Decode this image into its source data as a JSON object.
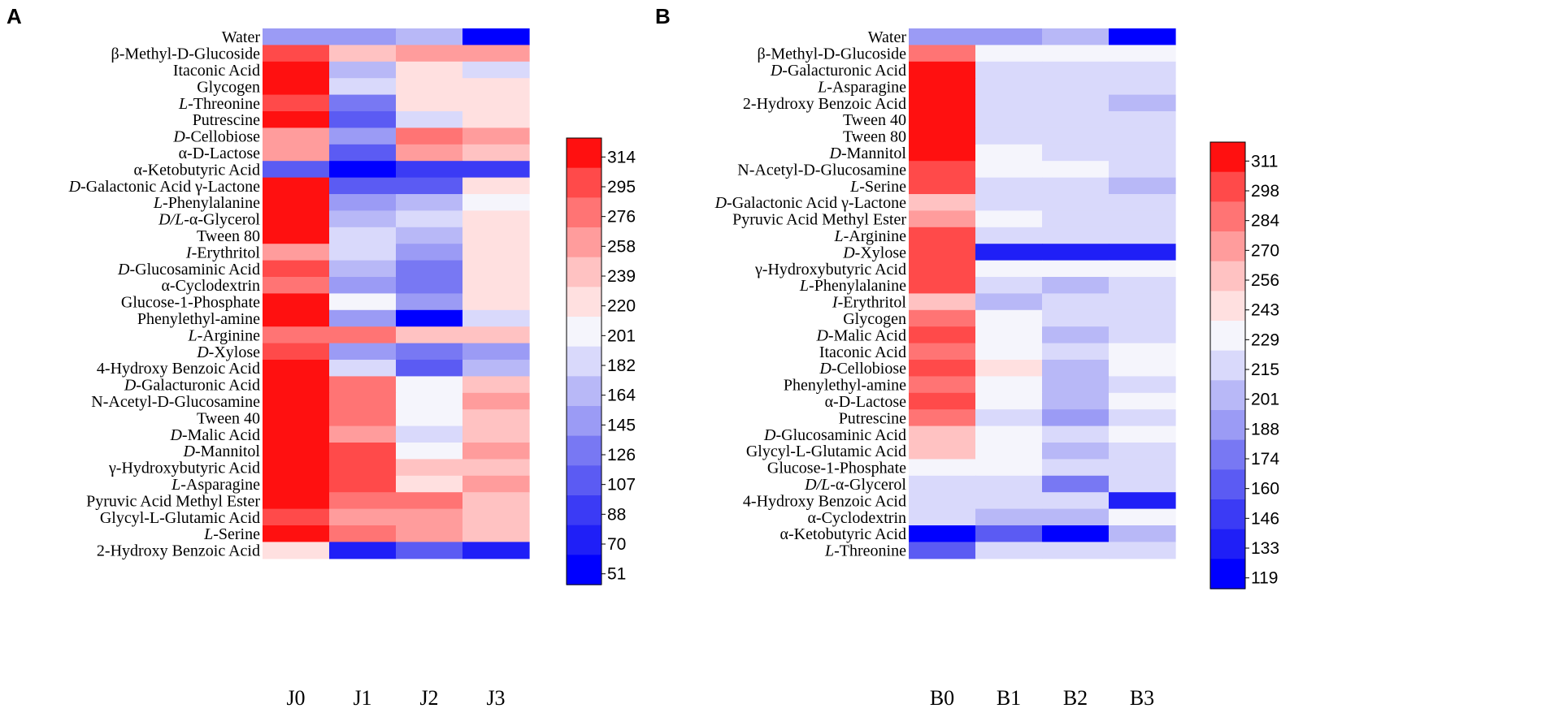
{
  "chart_data": [
    {
      "type": "heatmap",
      "panel": "A",
      "columns": [
        "J0",
        "J1",
        "J2",
        "J3"
      ],
      "rows": [
        {
          "label": "Water",
          "values": [
            140,
            140,
            160,
            51
          ]
        },
        {
          "label": "β-Methyl-D-Glucoside",
          "values": [
            295,
            235,
            250,
            250
          ]
        },
        {
          "label": "Itaconic Acid",
          "values": [
            300,
            160,
            210,
            182
          ]
        },
        {
          "label": "Glycogen",
          "values": [
            300,
            182,
            210,
            220
          ]
        },
        {
          "label": "L-Threonine",
          "values": [
            280,
            130,
            210,
            220
          ]
        },
        {
          "label": "Putrescine",
          "values": [
            300,
            110,
            182,
            220
          ]
        },
        {
          "label": "D-Cellobiose",
          "values": [
            258,
            155,
            270,
            245
          ]
        },
        {
          "label": "α-D-Lactose",
          "values": [
            258,
            105,
            258,
            235
          ]
        },
        {
          "label": "α-Ketobutyric Acid",
          "values": [
            110,
            51,
            95,
            95
          ]
        },
        {
          "label": "D-Galactonic Acid γ-Lactone",
          "values": [
            314,
            120,
            120,
            220
          ]
        },
        {
          "label": "L-Phenylalanine",
          "values": [
            300,
            150,
            160,
            201
          ]
        },
        {
          "label": "D/L-α-Glycerol",
          "values": [
            300,
            165,
            182,
            220
          ]
        },
        {
          "label": "Tween 80",
          "values": [
            314,
            182,
            164,
            220
          ]
        },
        {
          "label": "I-Erythritol",
          "values": [
            258,
            182,
            150,
            220
          ]
        },
        {
          "label": "D-Glucosaminic Acid",
          "values": [
            280,
            165,
            130,
            220
          ]
        },
        {
          "label": "α-Cyclodextrin",
          "values": [
            270,
            150,
            130,
            220
          ]
        },
        {
          "label": "Glucose-1-Phosphate",
          "values": [
            300,
            201,
            145,
            220
          ]
        },
        {
          "label": "Phenylethyl-amine",
          "values": [
            314,
            150,
            51,
            182
          ]
        },
        {
          "label": "L-Arginine",
          "values": [
            270,
            270,
            230,
            230
          ]
        },
        {
          "label": "D-Xylose",
          "values": [
            295,
            145,
            130,
            150
          ]
        },
        {
          "label": "4-Hydroxy Benzoic Acid",
          "values": [
            314,
            182,
            110,
            164
          ]
        },
        {
          "label": "D-Galacturonic Acid",
          "values": [
            314,
            270,
            201,
            235
          ]
        },
        {
          "label": "N-Acetyl-D-Glucosamine",
          "values": [
            314,
            270,
            201,
            250
          ]
        },
        {
          "label": "Tween 40",
          "values": [
            314,
            270,
            201,
            230
          ]
        },
        {
          "label": "D-Malic Acid",
          "values": [
            314,
            250,
            182,
            230
          ]
        },
        {
          "label": "D-Mannitol",
          "values": [
            314,
            285,
            201,
            245
          ]
        },
        {
          "label": "γ-Hydroxybutyric Acid",
          "values": [
            314,
            285,
            230,
            230
          ]
        },
        {
          "label": "L-Asparagine",
          "values": [
            314,
            285,
            210,
            250
          ]
        },
        {
          "label": "Pyruvic Acid Methyl Ester",
          "values": [
            314,
            270,
            270,
            230
          ]
        },
        {
          "label": "Glycyl-L-Glutamic Acid",
          "values": [
            285,
            250,
            245,
            230
          ]
        },
        {
          "label": "L-Serine",
          "values": [
            300,
            270,
            245,
            230
          ]
        },
        {
          "label": "2-Hydroxy Benzoic Acid",
          "values": [
            210,
            70,
            105,
            70
          ]
        }
      ],
      "colorbar": {
        "min": 51,
        "max": 314,
        "ticks": [
          "314",
          "295",
          "276",
          "258",
          "239",
          "220",
          "201",
          "182",
          "164",
          "145",
          "126",
          "107",
          "88",
          "70",
          "51"
        ]
      }
    },
    {
      "type": "heatmap",
      "panel": "B",
      "columns": [
        "B0",
        "B1",
        "B2",
        "B3"
      ],
      "rows": [
        {
          "label": "Water",
          "values": [
            185,
            185,
            200,
            119
          ]
        },
        {
          "label": "β-Methyl-D-Glucoside",
          "values": [
            284,
            229,
            229,
            229
          ]
        },
        {
          "label": "D-Galacturonic Acid",
          "values": [
            305,
            215,
            215,
            215
          ]
        },
        {
          "label": "L-Asparagine",
          "values": [
            311,
            215,
            215,
            215
          ]
        },
        {
          "label": "2-Hydroxy Benzoic Acid",
          "values": [
            305,
            215,
            215,
            208
          ]
        },
        {
          "label": "Tween 40",
          "values": [
            311,
            215,
            215,
            215
          ]
        },
        {
          "label": "Tween 80",
          "values": [
            311,
            215,
            215,
            215
          ]
        },
        {
          "label": "D-Mannitol",
          "values": [
            311,
            229,
            215,
            215
          ]
        },
        {
          "label": "N-Acetyl-D-Glucosamine",
          "values": [
            291,
            229,
            229,
            215
          ]
        },
        {
          "label": "L-Serine",
          "values": [
            298,
            215,
            215,
            208
          ]
        },
        {
          "label": "D-Galactonic Acid γ-Lactone",
          "values": [
            250,
            215,
            215,
            215
          ]
        },
        {
          "label": "Pyruvic Acid Methyl Ester",
          "values": [
            270,
            229,
            215,
            215
          ]
        },
        {
          "label": "L-Arginine",
          "values": [
            291,
            215,
            215,
            215
          ]
        },
        {
          "label": "D-Xylose",
          "values": [
            298,
            140,
            140,
            140
          ]
        },
        {
          "label": "γ-Hydroxybutyric Acid",
          "values": [
            298,
            229,
            229,
            229
          ]
        },
        {
          "label": "L-Phenylalanine",
          "values": [
            298,
            215,
            208,
            215
          ]
        },
        {
          "label": "I-Erythritol",
          "values": [
            250,
            208,
            215,
            215
          ]
        },
        {
          "label": "Glycogen",
          "values": [
            277,
            229,
            215,
            215
          ]
        },
        {
          "label": "D-Malic Acid",
          "values": [
            291,
            229,
            208,
            215
          ]
        },
        {
          "label": "Itaconic Acid",
          "values": [
            284,
            229,
            215,
            229
          ]
        },
        {
          "label": "D-Cellobiose",
          "values": [
            291,
            243,
            208,
            229
          ]
        },
        {
          "label": "Phenylethyl-amine",
          "values": [
            284,
            229,
            208,
            215
          ]
        },
        {
          "label": "α-D-Lactose",
          "values": [
            298,
            229,
            208,
            229
          ]
        },
        {
          "label": "Putrescine",
          "values": [
            277,
            215,
            195,
            215
          ]
        },
        {
          "label": "D-Glucosaminic Acid",
          "values": [
            250,
            229,
            215,
            229
          ]
        },
        {
          "label": "Glycyl-L-Glutamic Acid",
          "values": [
            250,
            229,
            208,
            215
          ]
        },
        {
          "label": "Glucose-1-Phosphate",
          "values": [
            229,
            229,
            215,
            215
          ]
        },
        {
          "label": "D/L-α-Glycerol",
          "values": [
            215,
            215,
            174,
            215
          ]
        },
        {
          "label": "4-Hydroxy Benzoic Acid",
          "values": [
            215,
            215,
            215,
            135
          ]
        },
        {
          "label": "α-Cyclodextrin",
          "values": [
            215,
            208,
            208,
            229
          ]
        },
        {
          "label": "α-Ketobutyric Acid",
          "values": [
            125,
            160,
            128,
            208
          ]
        },
        {
          "label": "L-Threonine",
          "values": [
            170,
            215,
            215,
            215
          ]
        }
      ],
      "colorbar": {
        "min": 119,
        "max": 311,
        "ticks": [
          "311",
          "298",
          "284",
          "270",
          "256",
          "243",
          "229",
          "215",
          "201",
          "188",
          "174",
          "160",
          "146",
          "133",
          "119"
        ]
      }
    }
  ]
}
